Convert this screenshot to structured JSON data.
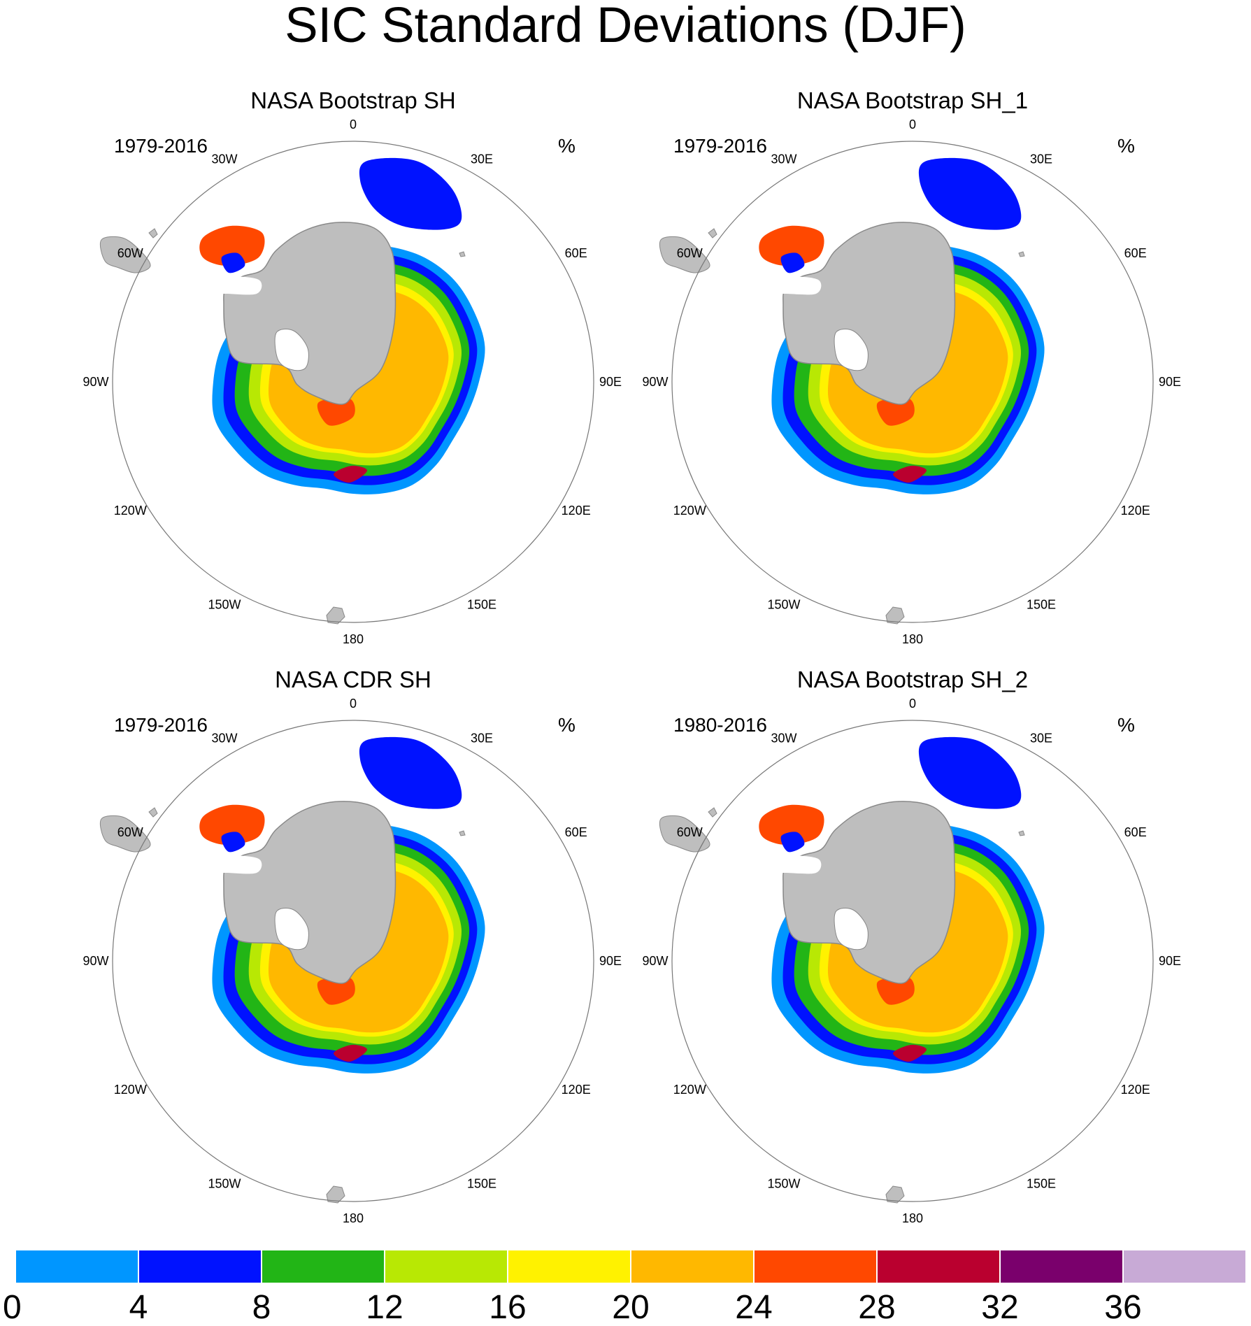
{
  "title": "SIC Standard Deviations (DJF)",
  "panels": [
    {
      "title": "NASA Bootstrap SH",
      "years": "1979-2016",
      "unit": "%"
    },
    {
      "title": "NASA Bootstrap SH_1",
      "years": "1979-2016",
      "unit": "%"
    },
    {
      "title": "NASA CDR SH",
      "years": "1979-2016",
      "unit": "%"
    },
    {
      "title": "NASA Bootstrap SH_2",
      "years": "1980-2016",
      "unit": "%"
    }
  ],
  "longitude_labels": [
    "0",
    "30E",
    "60E",
    "90E",
    "120E",
    "150E",
    "180",
    "150W",
    "120W",
    "90W",
    "60W",
    "30W"
  ],
  "colorbar": {
    "levels": [
      "0",
      "4",
      "8",
      "12",
      "16",
      "20",
      "24",
      "28",
      "32",
      "36"
    ],
    "colors": [
      "#0096ff",
      "#0012ff",
      "#22b516",
      "#b8e804",
      "#fff200",
      "#ffb800",
      "#ff4800",
      "#ba002f",
      "#7a006c",
      "#c8aad6"
    ]
  },
  "map_colors": {
    "land": "#bebebe",
    "coast": "#888888",
    "circle": "#777777"
  }
}
